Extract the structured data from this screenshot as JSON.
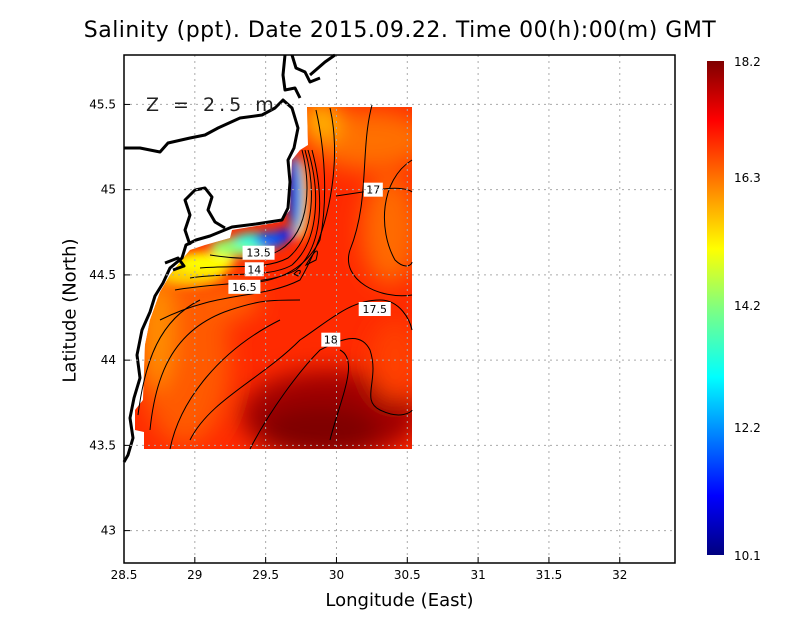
{
  "chart_data": {
    "type": "heatmap",
    "title": "Salinity (ppt). Date 2015.09.22. Time 00(h):00(m) GMT",
    "xlabel": "Longitude (East)",
    "ylabel": "Latitude (North)",
    "annotation": "Z = 2.5 m",
    "xlim": [
      28.5,
      32.39
    ],
    "ylim": [
      42.81,
      45.79
    ],
    "xticks": [
      "28.5",
      "29",
      "29.5",
      "30",
      "30.5",
      "31",
      "31.5",
      "32"
    ],
    "yticks": [
      "43",
      "43.5",
      "44",
      "44.5",
      "45",
      "45.5"
    ],
    "grid": true,
    "data_extent": {
      "lon": [
        28.65,
        30.55
      ],
      "lat": [
        43.5,
        45.5
      ]
    },
    "colorbar": {
      "min": 10.1,
      "max": 18.2,
      "ticks": [
        "10.1",
        "12.2",
        "14.2",
        "16.3",
        "18.2"
      ],
      "colormap": "jet"
    },
    "contour_labels": [
      {
        "label": "13.5",
        "lon": 29.45,
        "lat": 44.63
      },
      {
        "label": "14",
        "lon": 29.42,
        "lat": 44.58
      },
      {
        "label": "16.5",
        "lon": 29.35,
        "lat": 44.43
      },
      {
        "label": "17",
        "lon": 30.26,
        "lat": 45.0
      },
      {
        "label": "17.5",
        "lon": 30.27,
        "lat": 44.3
      },
      {
        "label": "18",
        "lon": 29.96,
        "lat": 44.12
      }
    ]
  }
}
